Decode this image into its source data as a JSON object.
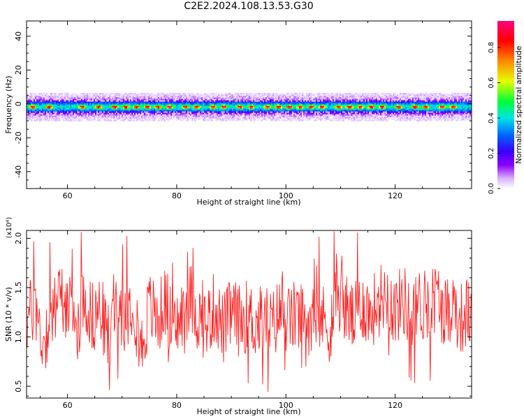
{
  "title": "C2E2.2024.108.13.53.G30",
  "top_panel": {
    "xlabel": "Height of straight line (km)",
    "ylabel": "Frequency (Hz)",
    "colorbar_label": "Normalized spectral amplitude"
  },
  "bottom_panel": {
    "xlabel": "Height of straight line (km)",
    "ylabel": "SNR (10 * v/v)",
    "scale_label": "(x10⁴)"
  },
  "colors": {
    "line": "#ff2020",
    "colormap": [
      "#ffffff",
      "#d9b3ff",
      "#8a00ff",
      "#3a00ff",
      "#0066ff",
      "#00e5e5",
      "#00ff33",
      "#e5ff00",
      "#ff8800",
      "#ff0000",
      "#ff0080"
    ]
  },
  "chart_data": [
    {
      "type": "heatmap",
      "title": "C2E2.2024.108.13.53.G30",
      "xlabel": "Height of straight line (km)",
      "ylabel": "Frequency (Hz)",
      "xlim": [
        52.5,
        134
      ],
      "ylim": [
        -50,
        49
      ],
      "xticks": [
        60,
        80,
        100,
        120
      ],
      "yticks": [
        -40,
        -20,
        0,
        20,
        40
      ],
      "colorbar": {
        "label": "Normalized spectral amplitude",
        "range": [
          0.0,
          0.95
        ],
        "ticks": [
          0.0,
          0.2,
          0.4,
          0.6,
          0.8
        ]
      },
      "band": {
        "center_freq_hz": -2,
        "core_halfwidth_hz": 3,
        "outer_halfwidth_hz": 8,
        "peak_heights_km": [
          53.5,
          56.5,
          62.5,
          65.5,
          68.5,
          70.5,
          72.5,
          74.5,
          76.5,
          78.5,
          81.5,
          83.5,
          86.5,
          88.5,
          91.5,
          93.5,
          96.5,
          98.5,
          100.5,
          102.5,
          104.5,
          106.5,
          109.5,
          111.5,
          113.5,
          115.5,
          117.5,
          120.5,
          123.5,
          125.5,
          128.5,
          130.5
        ]
      }
    },
    {
      "type": "line",
      "title": "",
      "xlabel": "Height of straight line (km)",
      "ylabel": "SNR (10 * v/v)",
      "y_scale_factor": "x10^4",
      "xlim": [
        52.5,
        134
      ],
      "ylim": [
        0.38,
        2.08
      ],
      "xticks": [
        60,
        80,
        100,
        120
      ],
      "yticks": [
        0.5,
        1.0,
        1.5,
        2.0
      ],
      "series": [
        {
          "x": [
            52.5,
            54,
            55.5,
            57,
            58.5,
            60,
            61.5,
            63,
            64.5,
            66,
            67.5,
            69,
            70.5,
            72,
            73.5,
            75,
            76.5,
            78,
            79.5,
            81,
            82.5,
            84,
            85.5,
            87,
            88.5,
            90,
            91.5,
            93,
            94.5,
            96,
            97.5,
            99,
            100.5,
            102,
            103.5,
            105,
            106.5,
            108,
            109.5,
            111,
            112.5,
            114,
            115.5,
            117,
            118.5,
            120,
            121.5,
            123,
            124.5,
            126,
            127.5,
            129,
            130.5,
            132,
            133.5
          ],
          "values": [
            1.2,
            1.45,
            0.8,
            1.3,
            1.6,
            1.5,
            1.0,
            1.65,
            1.25,
            1.4,
            0.9,
            1.55,
            1.3,
            1.6,
            0.7,
            1.45,
            1.2,
            1.55,
            1.0,
            1.3,
            1.6,
            1.25,
            1.15,
            1.45,
            1.05,
            1.35,
            1.2,
            1.3,
            1.15,
            1.25,
            1.1,
            1.4,
            1.2,
            1.3,
            1.15,
            1.35,
            1.25,
            1.1,
            1.7,
            1.4,
            1.2,
            1.5,
            1.3,
            1.55,
            1.7,
            1.35,
            1.6,
            1.2,
            1.5,
            1.4,
            1.65,
            1.35,
            1.5,
            1.25,
            1.35
          ]
        }
      ]
    }
  ]
}
